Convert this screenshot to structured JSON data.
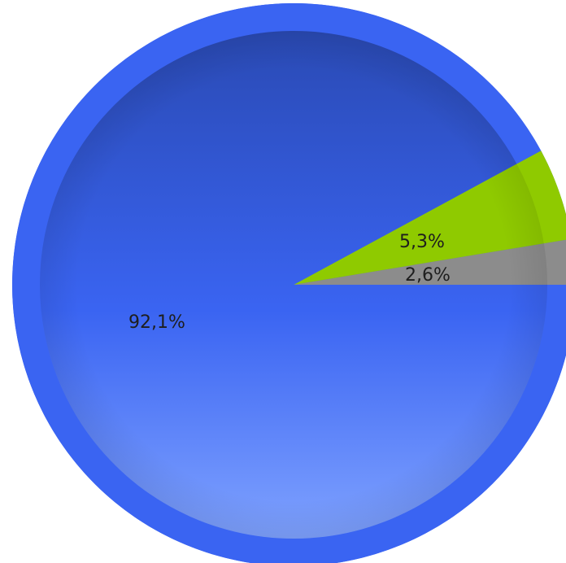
{
  "chart_data": {
    "type": "pie",
    "title": "",
    "start_angle_deg": 0,
    "direction": "counterclockwise",
    "series": [
      {
        "values": [
          2.6,
          5.3,
          92.1
        ],
        "labels": [
          "2,6%",
          "5,3%",
          "92,1%"
        ],
        "colors": [
          "#8c8c8c",
          "#8fca00",
          "#3a64f2"
        ]
      }
    ],
    "legend": "none"
  }
}
